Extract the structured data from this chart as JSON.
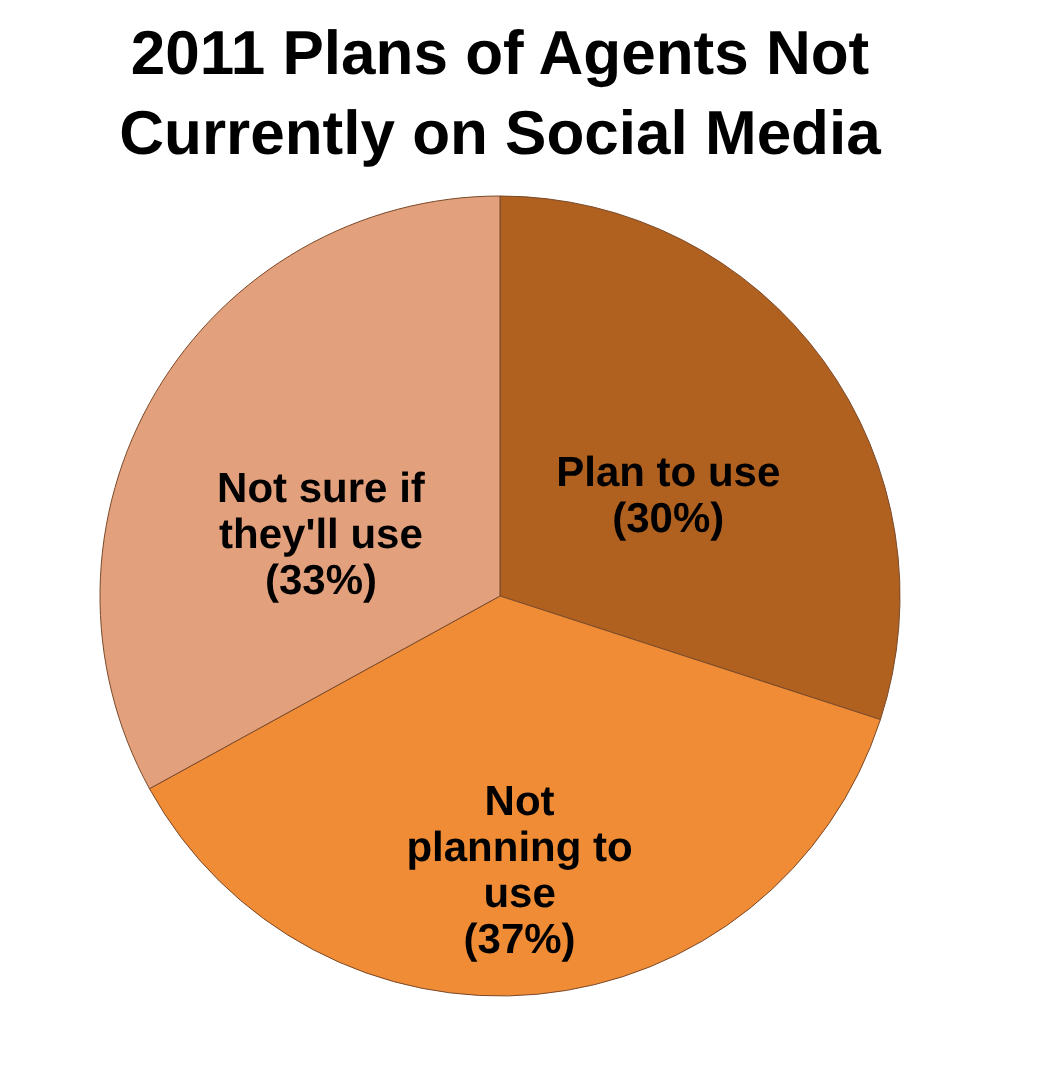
{
  "chart_data": {
    "type": "pie",
    "title": "2011 Plans of Agents Not Currently on Social Media",
    "categories": [
      "Plan to use",
      "Not planning to use",
      "Not sure if they'll use"
    ],
    "values": [
      30,
      37,
      33
    ],
    "value_labels": [
      "(30%)",
      "(37%)",
      "(33%)"
    ],
    "colors": [
      "#b0601f",
      "#f08c35",
      "#e3a07c"
    ],
    "legend": false
  }
}
